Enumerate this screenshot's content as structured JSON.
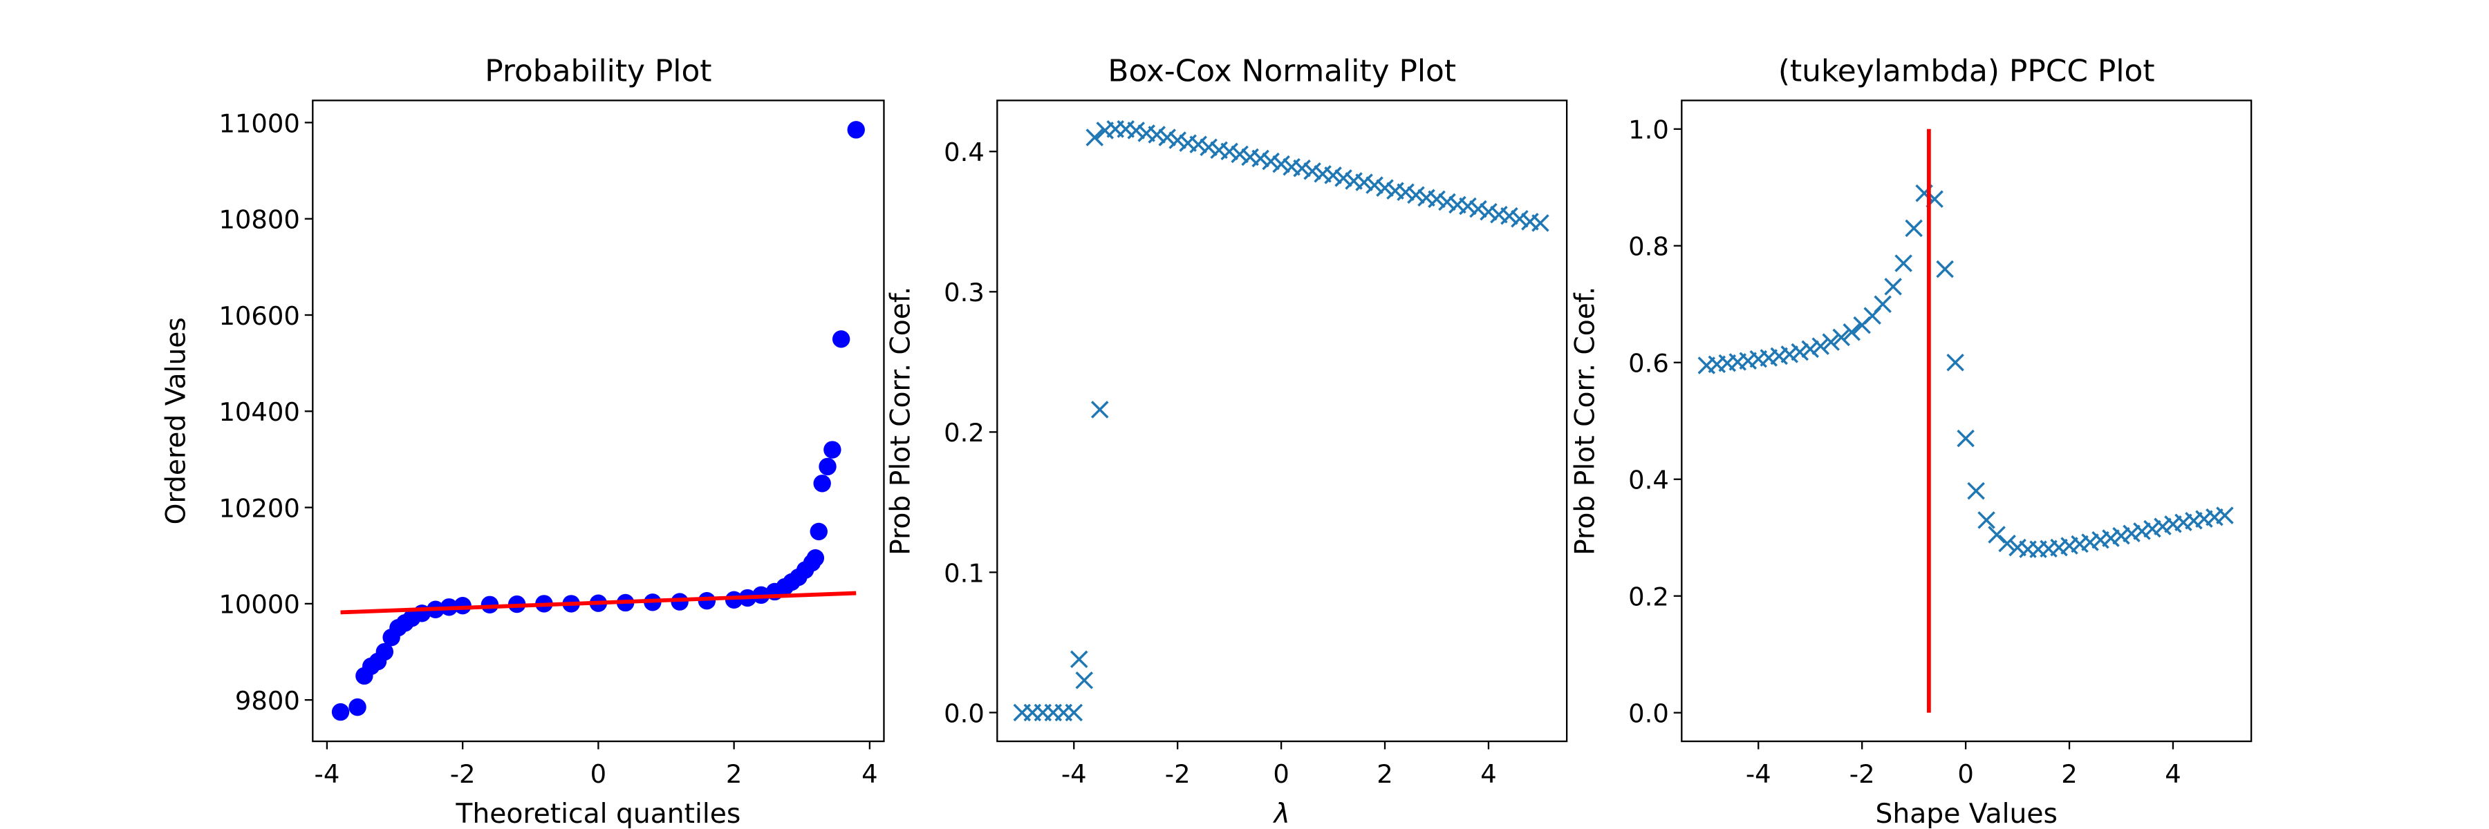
{
  "chart_data": [
    {
      "type": "scatter",
      "title": "Probability Plot",
      "xlabel": "Theoretical quantiles",
      "ylabel": "Ordered Values",
      "xlim": [
        -4.21,
        4.21
      ],
      "ylim": [
        9714,
        11046
      ],
      "xticks": [
        -4,
        -2,
        0,
        2,
        4
      ],
      "yticks": [
        9800,
        10000,
        10200,
        10400,
        10600,
        10800,
        11000
      ],
      "x": [
        -3.8,
        -3.55,
        -3.45,
        -3.35,
        -3.25,
        -3.15,
        -3.05,
        -2.95,
        -2.85,
        -2.75,
        -2.6,
        -2.4,
        -2.2,
        -2.0,
        -1.6,
        -1.2,
        -0.8,
        -0.4,
        0,
        0.4,
        0.8,
        1.2,
        1.6,
        2.0,
        2.2,
        2.4,
        2.6,
        2.75,
        2.85,
        2.95,
        3.05,
        3.15,
        3.2,
        3.25,
        3.3,
        3.38,
        3.45,
        3.58,
        3.8
      ],
      "series": [
        {
          "color": "#0000ff",
          "marker": "o",
          "values": [
            9775,
            9785,
            9850,
            9870,
            9880,
            9900,
            9930,
            9950,
            9960,
            9970,
            9980,
            9988,
            9993,
            9996,
            9998,
            9999,
            10000,
            10000,
            10001,
            10002,
            10003,
            10004,
            10006,
            10008,
            10012,
            10018,
            10025,
            10035,
            10045,
            10055,
            10070,
            10085,
            10095,
            10150,
            10250,
            10285,
            10320,
            10550,
            10985
          ]
        }
      ],
      "lines": [
        {
          "color": "#ff0000",
          "x": [
            -3.8,
            3.8
          ],
          "y": [
            9982,
            10022
          ]
        }
      ]
    },
    {
      "type": "scatter",
      "title": "Box-Cox Normality Plot",
      "xlabel": "λ",
      "ylabel": "Prob Plot Corr. Coef.",
      "xlim": [
        -5.48,
        5.51
      ],
      "ylim": [
        -0.0205,
        0.4364
      ],
      "xticks": [
        -4,
        -2,
        0,
        2,
        4
      ],
      "yticks": [
        {
          "value": 0,
          "label": "0.0"
        },
        0.1,
        0.2,
        0.3,
        0.4
      ],
      "x": [
        -5,
        -4.8,
        -4.6,
        -4.4,
        -4.2,
        -4.0,
        -3.9,
        -3.8,
        -3.6,
        -3.5,
        -3.4,
        -3.2,
        -3.0,
        -2.8,
        -2.6,
        -2.4,
        -2.2,
        -2.0,
        -1.8,
        -1.6,
        -1.4,
        -1.2,
        -1.0,
        -0.8,
        -0.6,
        -0.4,
        -0.2,
        0,
        0.2,
        0.4,
        0.6,
        0.8,
        1.0,
        1.2,
        1.4,
        1.6,
        1.8,
        2.0,
        2.2,
        2.4,
        2.6,
        2.8,
        3.0,
        3.2,
        3.4,
        3.6,
        3.8,
        4.0,
        4.2,
        4.4,
        4.6,
        4.8,
        5.0
      ],
      "series": [
        {
          "color": "#1f77b4",
          "marker": "x",
          "values": [
            0,
            0,
            0,
            0,
            0,
            0,
            0.038,
            0.023,
            0.41,
            0.216,
            0.415,
            0.416,
            0.416,
            0.415,
            0.413,
            0.412,
            0.41,
            0.408,
            0.406,
            0.405,
            0.403,
            0.401,
            0.4,
            0.398,
            0.396,
            0.395,
            0.393,
            0.391,
            0.389,
            0.388,
            0.386,
            0.384,
            0.383,
            0.381,
            0.379,
            0.378,
            0.376,
            0.374,
            0.372,
            0.371,
            0.369,
            0.367,
            0.366,
            0.364,
            0.362,
            0.361,
            0.359,
            0.357,
            0.355,
            0.354,
            0.352,
            0.35,
            0.349
          ]
        }
      ],
      "lines": []
    },
    {
      "type": "scatter",
      "title": "(tukeylambda) PPCC Plot",
      "xlabel": "Shape Values",
      "ylabel": "Prob Plot Corr. Coef.",
      "xlim": [
        -5.48,
        5.51
      ],
      "ylim": [
        -0.049,
        1.049
      ],
      "xticks": [
        -4,
        -2,
        0,
        2,
        4
      ],
      "yticks": [
        {
          "value": 0,
          "label": "0.0"
        },
        0.2,
        0.4,
        0.6,
        0.8,
        {
          "value": 1,
          "label": "1.0"
        }
      ],
      "x": [
        -5,
        -4.8,
        -4.6,
        -4.4,
        -4.2,
        -4.0,
        -3.8,
        -3.6,
        -3.4,
        -3.2,
        -3.0,
        -2.8,
        -2.6,
        -2.4,
        -2.2,
        -2.0,
        -1.8,
        -1.6,
        -1.4,
        -1.2,
        -1.0,
        -0.8,
        -0.6,
        -0.4,
        -0.2,
        0,
        0.2,
        0.4,
        0.6,
        0.8,
        1.0,
        1.2,
        1.4,
        1.6,
        1.8,
        2.0,
        2.2,
        2.4,
        2.6,
        2.8,
        3.0,
        3.2,
        3.4,
        3.6,
        3.8,
        4.0,
        4.2,
        4.4,
        4.6,
        4.8,
        5.0
      ],
      "series": [
        {
          "color": "#1f77b4",
          "marker": "x",
          "values": [
            0.595,
            0.597,
            0.599,
            0.601,
            0.603,
            0.606,
            0.608,
            0.611,
            0.614,
            0.618,
            0.623,
            0.628,
            0.635,
            0.643,
            0.652,
            0.664,
            0.68,
            0.7,
            0.73,
            0.77,
            0.83,
            0.89,
            0.88,
            0.76,
            0.6,
            0.47,
            0.38,
            0.33,
            0.305,
            0.29,
            0.283,
            0.28,
            0.28,
            0.281,
            0.283,
            0.286,
            0.289,
            0.292,
            0.296,
            0.299,
            0.303,
            0.307,
            0.311,
            0.315,
            0.319,
            0.323,
            0.326,
            0.329,
            0.332,
            0.335,
            0.338
          ]
        }
      ],
      "lines": [
        {
          "color": "#ff0000",
          "x": [
            -0.71,
            -0.71
          ],
          "y": [
            0,
            1
          ]
        }
      ]
    }
  ]
}
